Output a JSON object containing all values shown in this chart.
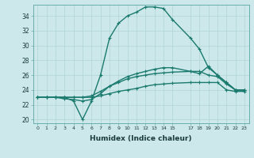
{
  "xlabel": "Humidex (Indice chaleur)",
  "bg_color": "#cce8ea",
  "line_color": "#1a7a6e",
  "grid_color": "#b0d4d4",
  "xlim": [
    -0.5,
    23.5
  ],
  "ylim": [
    19.5,
    35.5
  ],
  "xticks": [
    0,
    1,
    2,
    3,
    4,
    5,
    6,
    7,
    8,
    9,
    10,
    11,
    12,
    13,
    14,
    15,
    17,
    18,
    19,
    20,
    21,
    22,
    23
  ],
  "yticks": [
    20,
    22,
    24,
    26,
    28,
    30,
    32,
    34
  ],
  "series": [
    {
      "x": [
        0,
        1,
        2,
        3,
        4,
        5,
        6,
        7,
        8,
        9,
        10,
        11,
        12,
        13,
        14,
        15,
        17,
        18,
        19,
        20,
        21,
        22,
        23
      ],
      "y": [
        23,
        23,
        23,
        23,
        22.5,
        20,
        22.5,
        26,
        31,
        33,
        34,
        34.5,
        35.2,
        35.2,
        35,
        33.5,
        31,
        29.5,
        27,
        26,
        25,
        24,
        24
      ],
      "linestyle": "-",
      "linewidth": 1.0
    },
    {
      "x": [
        0,
        1,
        2,
        3,
        4,
        5,
        6,
        7,
        8,
        9,
        10,
        11,
        12,
        13,
        14,
        15,
        17,
        18,
        19,
        20,
        21,
        22,
        23
      ],
      "y": [
        23,
        23,
        23,
        22.8,
        22.7,
        22.5,
        22.7,
        23.5,
        24.5,
        25.2,
        25.8,
        26.2,
        26.5,
        26.8,
        27,
        27,
        26.5,
        26.2,
        27.2,
        26,
        25,
        24,
        24
      ],
      "linestyle": "-",
      "linewidth": 1.0
    },
    {
      "x": [
        0,
        1,
        2,
        3,
        4,
        5,
        6,
        7,
        8,
        9,
        10,
        11,
        12,
        13,
        14,
        15,
        17,
        18,
        19,
        20,
        21,
        22,
        23
      ],
      "y": [
        23,
        23,
        23,
        23,
        23,
        23,
        23.2,
        23.8,
        24.5,
        25,
        25.5,
        25.8,
        26,
        26.2,
        26.3,
        26.4,
        26.5,
        26.5,
        26,
        25.8,
        24.8,
        24,
        24
      ],
      "linestyle": "-",
      "linewidth": 1.0
    },
    {
      "x": [
        0,
        1,
        2,
        3,
        4,
        5,
        6,
        7,
        8,
        9,
        10,
        11,
        12,
        13,
        14,
        15,
        17,
        18,
        19,
        20,
        21,
        22,
        23
      ],
      "y": [
        23,
        23,
        23,
        23,
        23,
        23,
        23,
        23.2,
        23.5,
        23.8,
        24,
        24.2,
        24.5,
        24.7,
        24.8,
        24.9,
        25,
        25,
        25,
        25,
        24,
        23.8,
        23.8
      ],
      "linestyle": "-",
      "linewidth": 1.0
    }
  ]
}
